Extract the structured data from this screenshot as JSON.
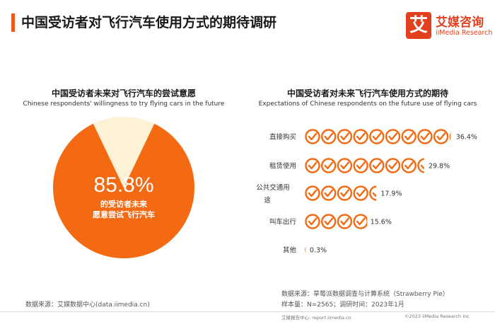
{
  "header": {
    "title": "中国受访者对飞行汽车使用方式的期待调研",
    "logo_mark": "艾",
    "logo_cn": "艾媒咨询",
    "logo_en": "iiMedia Research"
  },
  "left_panel": {
    "title_cn": "中国受访者未来对飞行汽车的尝试意愿",
    "title_en": "Chinese respondents' willingness to try flying cars in the future",
    "value": "85.8%",
    "label_line1": "的受访者未来",
    "label_line2": "愿意尝试飞行汽车"
  },
  "right_panel": {
    "title_cn": "中国受访者对未来飞行汽车使用方式的期待",
    "title_en": "Expectations of Chinese respondents on the future use of flying cars"
  },
  "chart_data": [
    {
      "type": "pie",
      "title": "中国受访者未来对飞行汽车的尝试意愿",
      "subtitle": "Chinese respondents' willingness to try flying cars in the future",
      "values": [
        85.8,
        14.2
      ],
      "colors": [
        "#f46a13",
        "#fdf1d6"
      ],
      "annotation": "85.8% 的受访者未来愿意尝试飞行汽车"
    },
    {
      "type": "bar",
      "title": "中国受访者对未来飞行汽车使用方式的期待",
      "subtitle": "Expectations of Chinese respondents on the future use of flying cars",
      "categories": [
        "直接购买",
        "租赁使用",
        "公共交通用途",
        "叫车出行",
        "其他"
      ],
      "values": [
        36.4,
        29.8,
        17.9,
        15.6,
        0.3
      ],
      "labels": [
        "36.4%",
        "29.8%",
        "17.9%",
        "15.6%",
        "0.3%"
      ],
      "icon_unit": 4,
      "color": "#f46a13"
    }
  ],
  "sources": {
    "left": "数据来源：艾媒数据中心(data.iimedia.cn)",
    "right_line1": "数据来源：草莓派数据调查与计算系统（Strawberry Pie）",
    "right_line2": "样本量：N=2565；调研时间：2023年1月"
  },
  "footer": {
    "left": "艾媒报告中心: report.iimedia.cn",
    "right": "©2023  iiMedia Research  Inc"
  }
}
